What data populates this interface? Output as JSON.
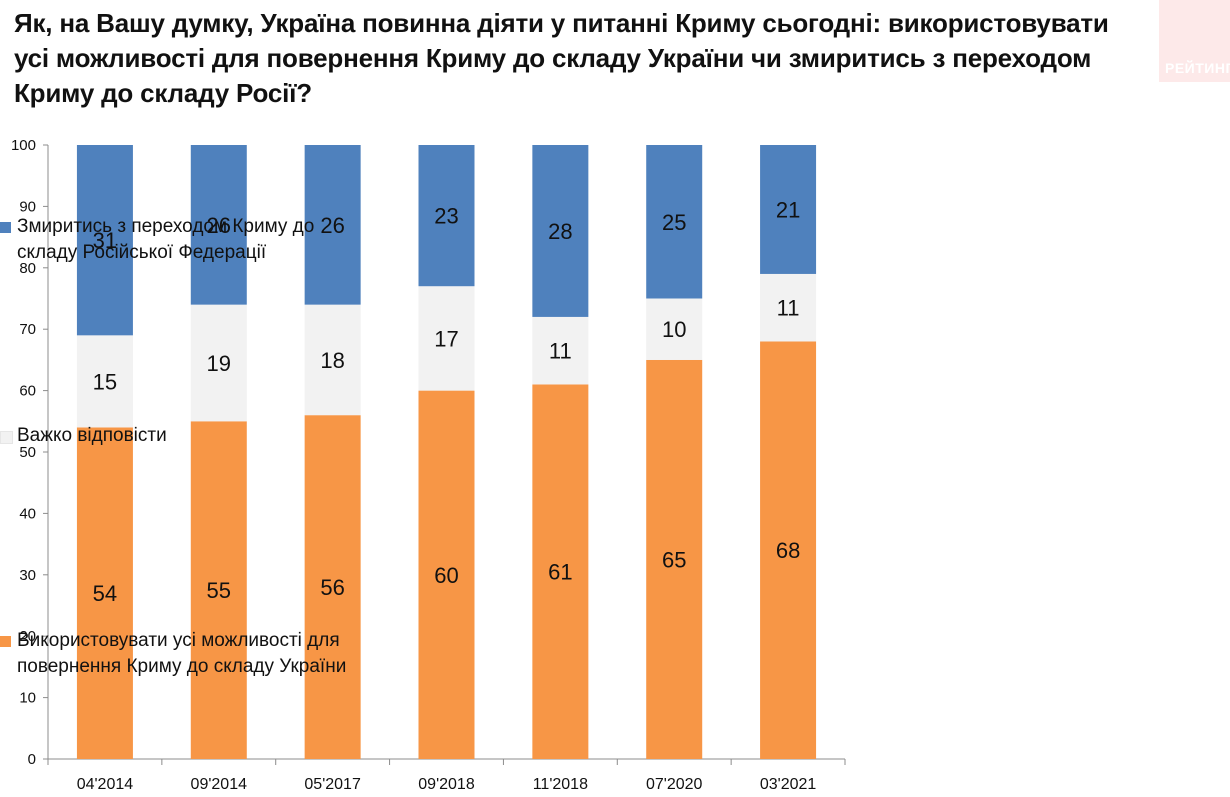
{
  "title": "Як, на Вашу думку, Україна повинна діяти у питанні Криму сьогодні: використовувати усі можливості для повернення Криму до складу України чи змиритись з переходом Криму до складу Росії?",
  "watermark": "РЕЙТИНГ",
  "colors": {
    "blue": "#4f81bd",
    "gray": "#f2f2f2",
    "orange": "#f79646",
    "axis": "#8c8c8c",
    "text": "#111111"
  },
  "legend": [
    {
      "label": "Змиритись з переходом Криму до складу Російської Федерації",
      "color": "#4f81bd"
    },
    {
      "label": "Важко відповісти",
      "color": "#f2f2f2"
    },
    {
      "label": "Використовувати усі можливості для повернення Криму до складу України",
      "color": "#f79646"
    }
  ],
  "chart_data": {
    "type": "bar",
    "stacked": true,
    "title": "Як, на Вашу думку, Україна повинна діяти у питанні Криму сьогодні: використовувати усі можливості для повернення Криму до складу України чи змиритись з переходом Криму до складу Росії?",
    "categories": [
      "04'2014",
      "09'2014",
      "05'2017",
      "09'2018",
      "11'2018",
      "07'2020",
      "03'2021"
    ],
    "series": [
      {
        "name": "Використовувати усі можливості для повернення Криму до складу України",
        "color": "#f79646",
        "values": [
          54,
          55,
          56,
          60,
          61,
          65,
          68
        ]
      },
      {
        "name": "Важко відповісти",
        "color": "#f2f2f2",
        "values": [
          15,
          19,
          18,
          17,
          11,
          10,
          11
        ]
      },
      {
        "name": "Змиритись з переходом Криму до складу Російської Федерації",
        "color": "#4f81bd",
        "values": [
          31,
          26,
          26,
          23,
          28,
          25,
          21
        ]
      }
    ],
    "ylim": [
      0,
      100
    ],
    "yticks": [
      0,
      10,
      20,
      30,
      40,
      50,
      60,
      70,
      80,
      90,
      100
    ],
    "grid": false,
    "legend_position": "right"
  }
}
